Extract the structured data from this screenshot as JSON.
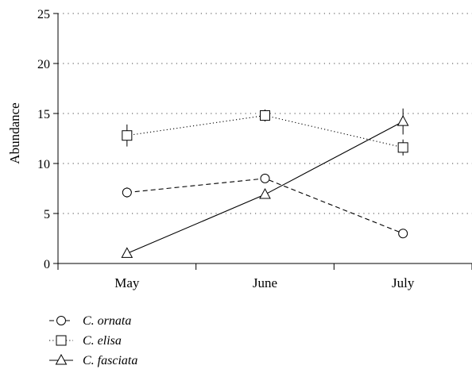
{
  "chart_data": {
    "type": "line",
    "ylabel": "Abundance",
    "xlabel": "",
    "categories": [
      "May",
      "June",
      "July"
    ],
    "ylim": [
      0,
      25
    ],
    "yticks": [
      0,
      5,
      10,
      15,
      20,
      25
    ],
    "grid": "horizontal dotted",
    "legend_position": "bottom-left",
    "series": [
      {
        "name": "C. ornata",
        "values": [
          7.1,
          8.5,
          3.0
        ],
        "errors": [
          0.5,
          0.4,
          0.3
        ],
        "marker": "circle",
        "line": "dashed"
      },
      {
        "name": "C. elisa",
        "values": [
          12.8,
          14.8,
          11.6
        ],
        "errors": [
          1.1,
          0.6,
          0.8
        ],
        "marker": "square",
        "line": "dotted"
      },
      {
        "name": "C. fasciata",
        "values": [
          1.0,
          6.9,
          14.2
        ],
        "errors": [
          0.2,
          0.3,
          1.3
        ],
        "marker": "triangle",
        "line": "solid"
      }
    ]
  }
}
